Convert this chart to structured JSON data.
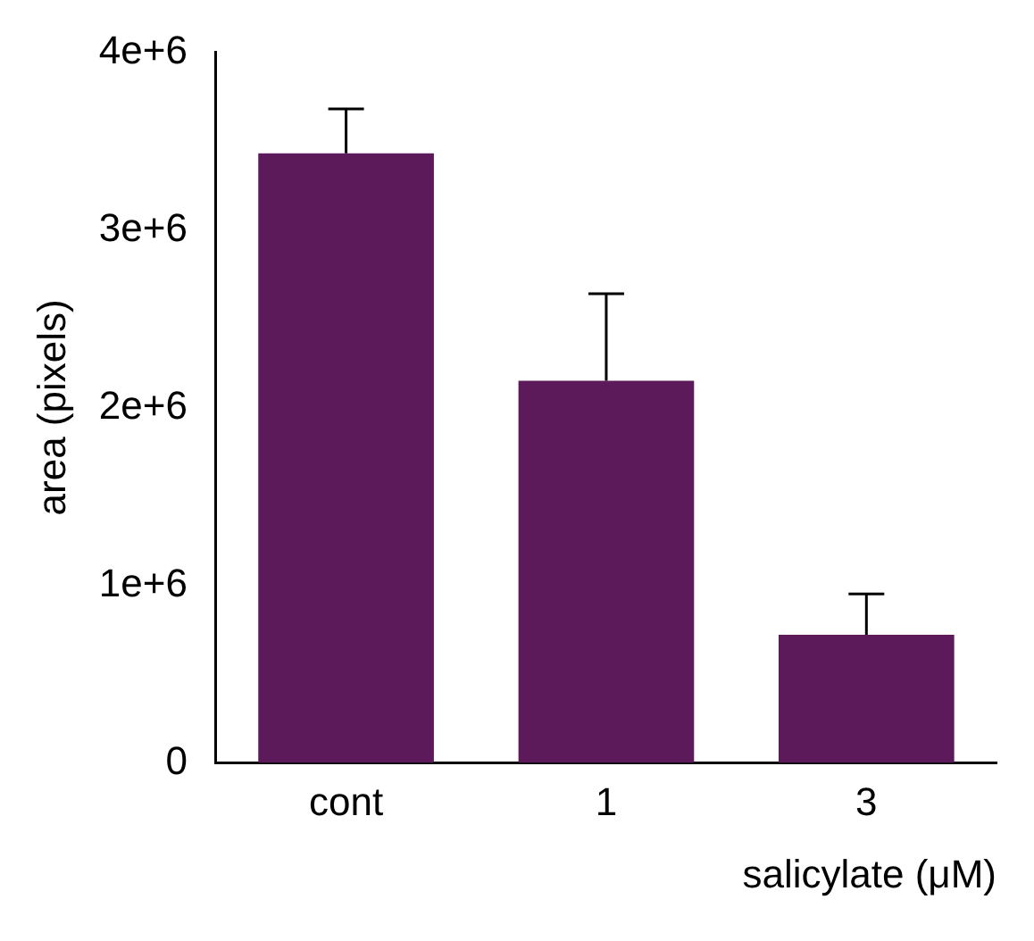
{
  "chart_data": {
    "type": "bar",
    "categories": [
      "cont",
      "1",
      "3"
    ],
    "values": [
      3430000,
      2150000,
      720000
    ],
    "errors": [
      [
        3430000,
        3680000
      ],
      [
        2150000,
        2640000
      ],
      [
        720000,
        950000
      ]
    ],
    "color": "#5c1a5a",
    "xlabel": "salicylate (μM)",
    "ylabel": "area (pixels)",
    "ylim": [
      0,
      4000000
    ],
    "yticks": [
      {
        "value": 0,
        "label": "0"
      },
      {
        "value": 1000000,
        "label": "1e+6"
      },
      {
        "value": 2000000,
        "label": "2e+6"
      },
      {
        "value": 3000000,
        "label": "3e+6"
      },
      {
        "value": 4000000,
        "label": "4e+6"
      }
    ],
    "grid": false,
    "legend": false
  }
}
